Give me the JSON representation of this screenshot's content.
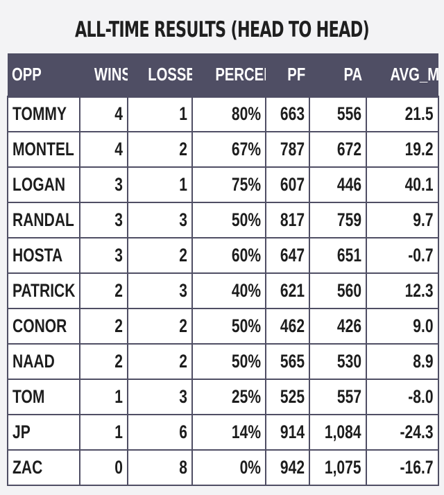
{
  "title": "ALL-TIME RESULTS (HEAD TO HEAD)",
  "columns": [
    "OPP",
    "WINS",
    "LOSSES",
    "PERCENT",
    "PF",
    "PA",
    "AVG_MRG"
  ],
  "rows": [
    [
      "TOMMY",
      "4",
      "1",
      "80%",
      "663",
      "556",
      "21.5"
    ],
    [
      "MONTEL",
      "4",
      "2",
      "67%",
      "787",
      "672",
      "19.2"
    ],
    [
      "LOGAN",
      "3",
      "1",
      "75%",
      "607",
      "446",
      "40.1"
    ],
    [
      "RANDAL",
      "3",
      "3",
      "50%",
      "817",
      "759",
      "9.7"
    ],
    [
      "HOSTA",
      "3",
      "2",
      "60%",
      "647",
      "651",
      "-0.7"
    ],
    [
      "PATRICK",
      "2",
      "3",
      "40%",
      "621",
      "560",
      "12.3"
    ],
    [
      "CONOR",
      "2",
      "2",
      "50%",
      "462",
      "426",
      "9.0"
    ],
    [
      "NAAD",
      "2",
      "2",
      "50%",
      "565",
      "530",
      "8.9"
    ],
    [
      "TOM",
      "1",
      "3",
      "25%",
      "525",
      "557",
      "-8.0"
    ],
    [
      "JP",
      "1",
      "6",
      "14%",
      "914",
      "1,084",
      "-24.3"
    ],
    [
      "ZAC",
      "0",
      "8",
      "0%",
      "942",
      "1,075",
      "-16.7"
    ]
  ],
  "colors": {
    "header_bg": "#4f4e64",
    "header_text": "#ffffff",
    "page_bg": "#f3f3f5",
    "cell_bg": "#ffffff",
    "text": "#1d1d1d"
  }
}
